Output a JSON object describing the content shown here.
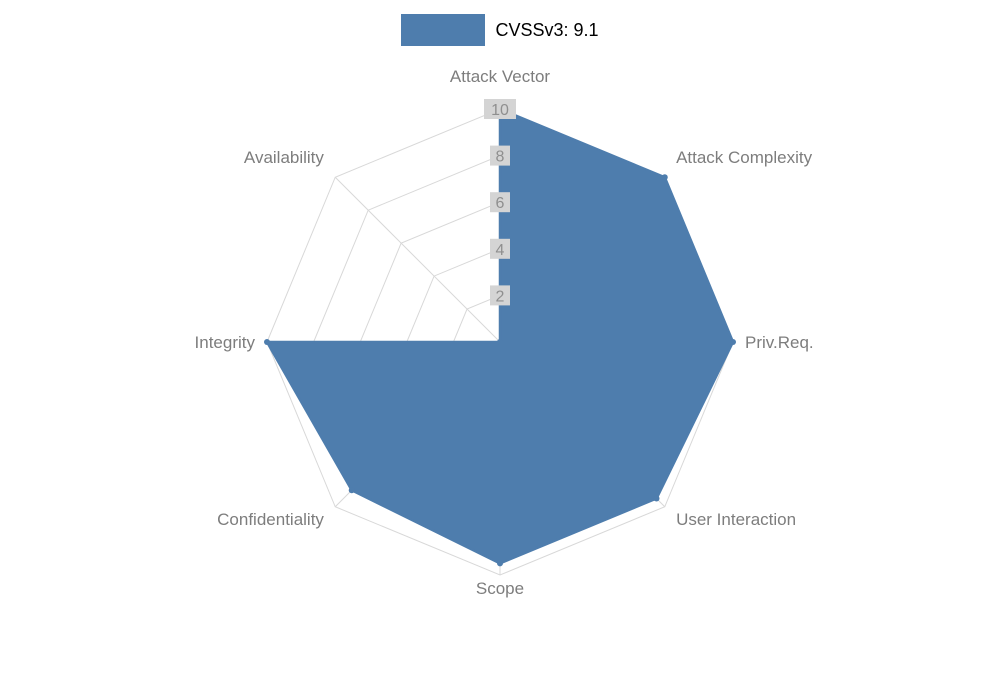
{
  "legend": {
    "label": "CVSSv3: 9.1"
  },
  "chart_data": {
    "type": "radar",
    "title": "CVSSv3: 9.1",
    "categories": [
      "Attack Vector",
      "Attack Complexity",
      "Priv.Req.",
      "User Interaction",
      "Scope",
      "Confidentiality",
      "Integrity",
      "Availability"
    ],
    "series": [
      {
        "name": "CVSSv3: 9.1",
        "values": [
          10,
          10,
          10,
          9.5,
          9.5,
          9,
          10,
          0
        ]
      }
    ],
    "rmin": 0,
    "rmax": 10,
    "ticks": [
      2,
      4,
      6,
      8,
      10
    ],
    "grid": true,
    "legend_position": "top",
    "colors": {
      "fill": "#4e7dad",
      "stroke": "#4e7dad",
      "grid": "#d8d8d8",
      "axis_label": "#7d7d7d",
      "tick_label": "#8f8f8f",
      "tick_backdrop": "#d4d4d4",
      "legend_text": "#000000",
      "background": "#ffffff"
    }
  }
}
